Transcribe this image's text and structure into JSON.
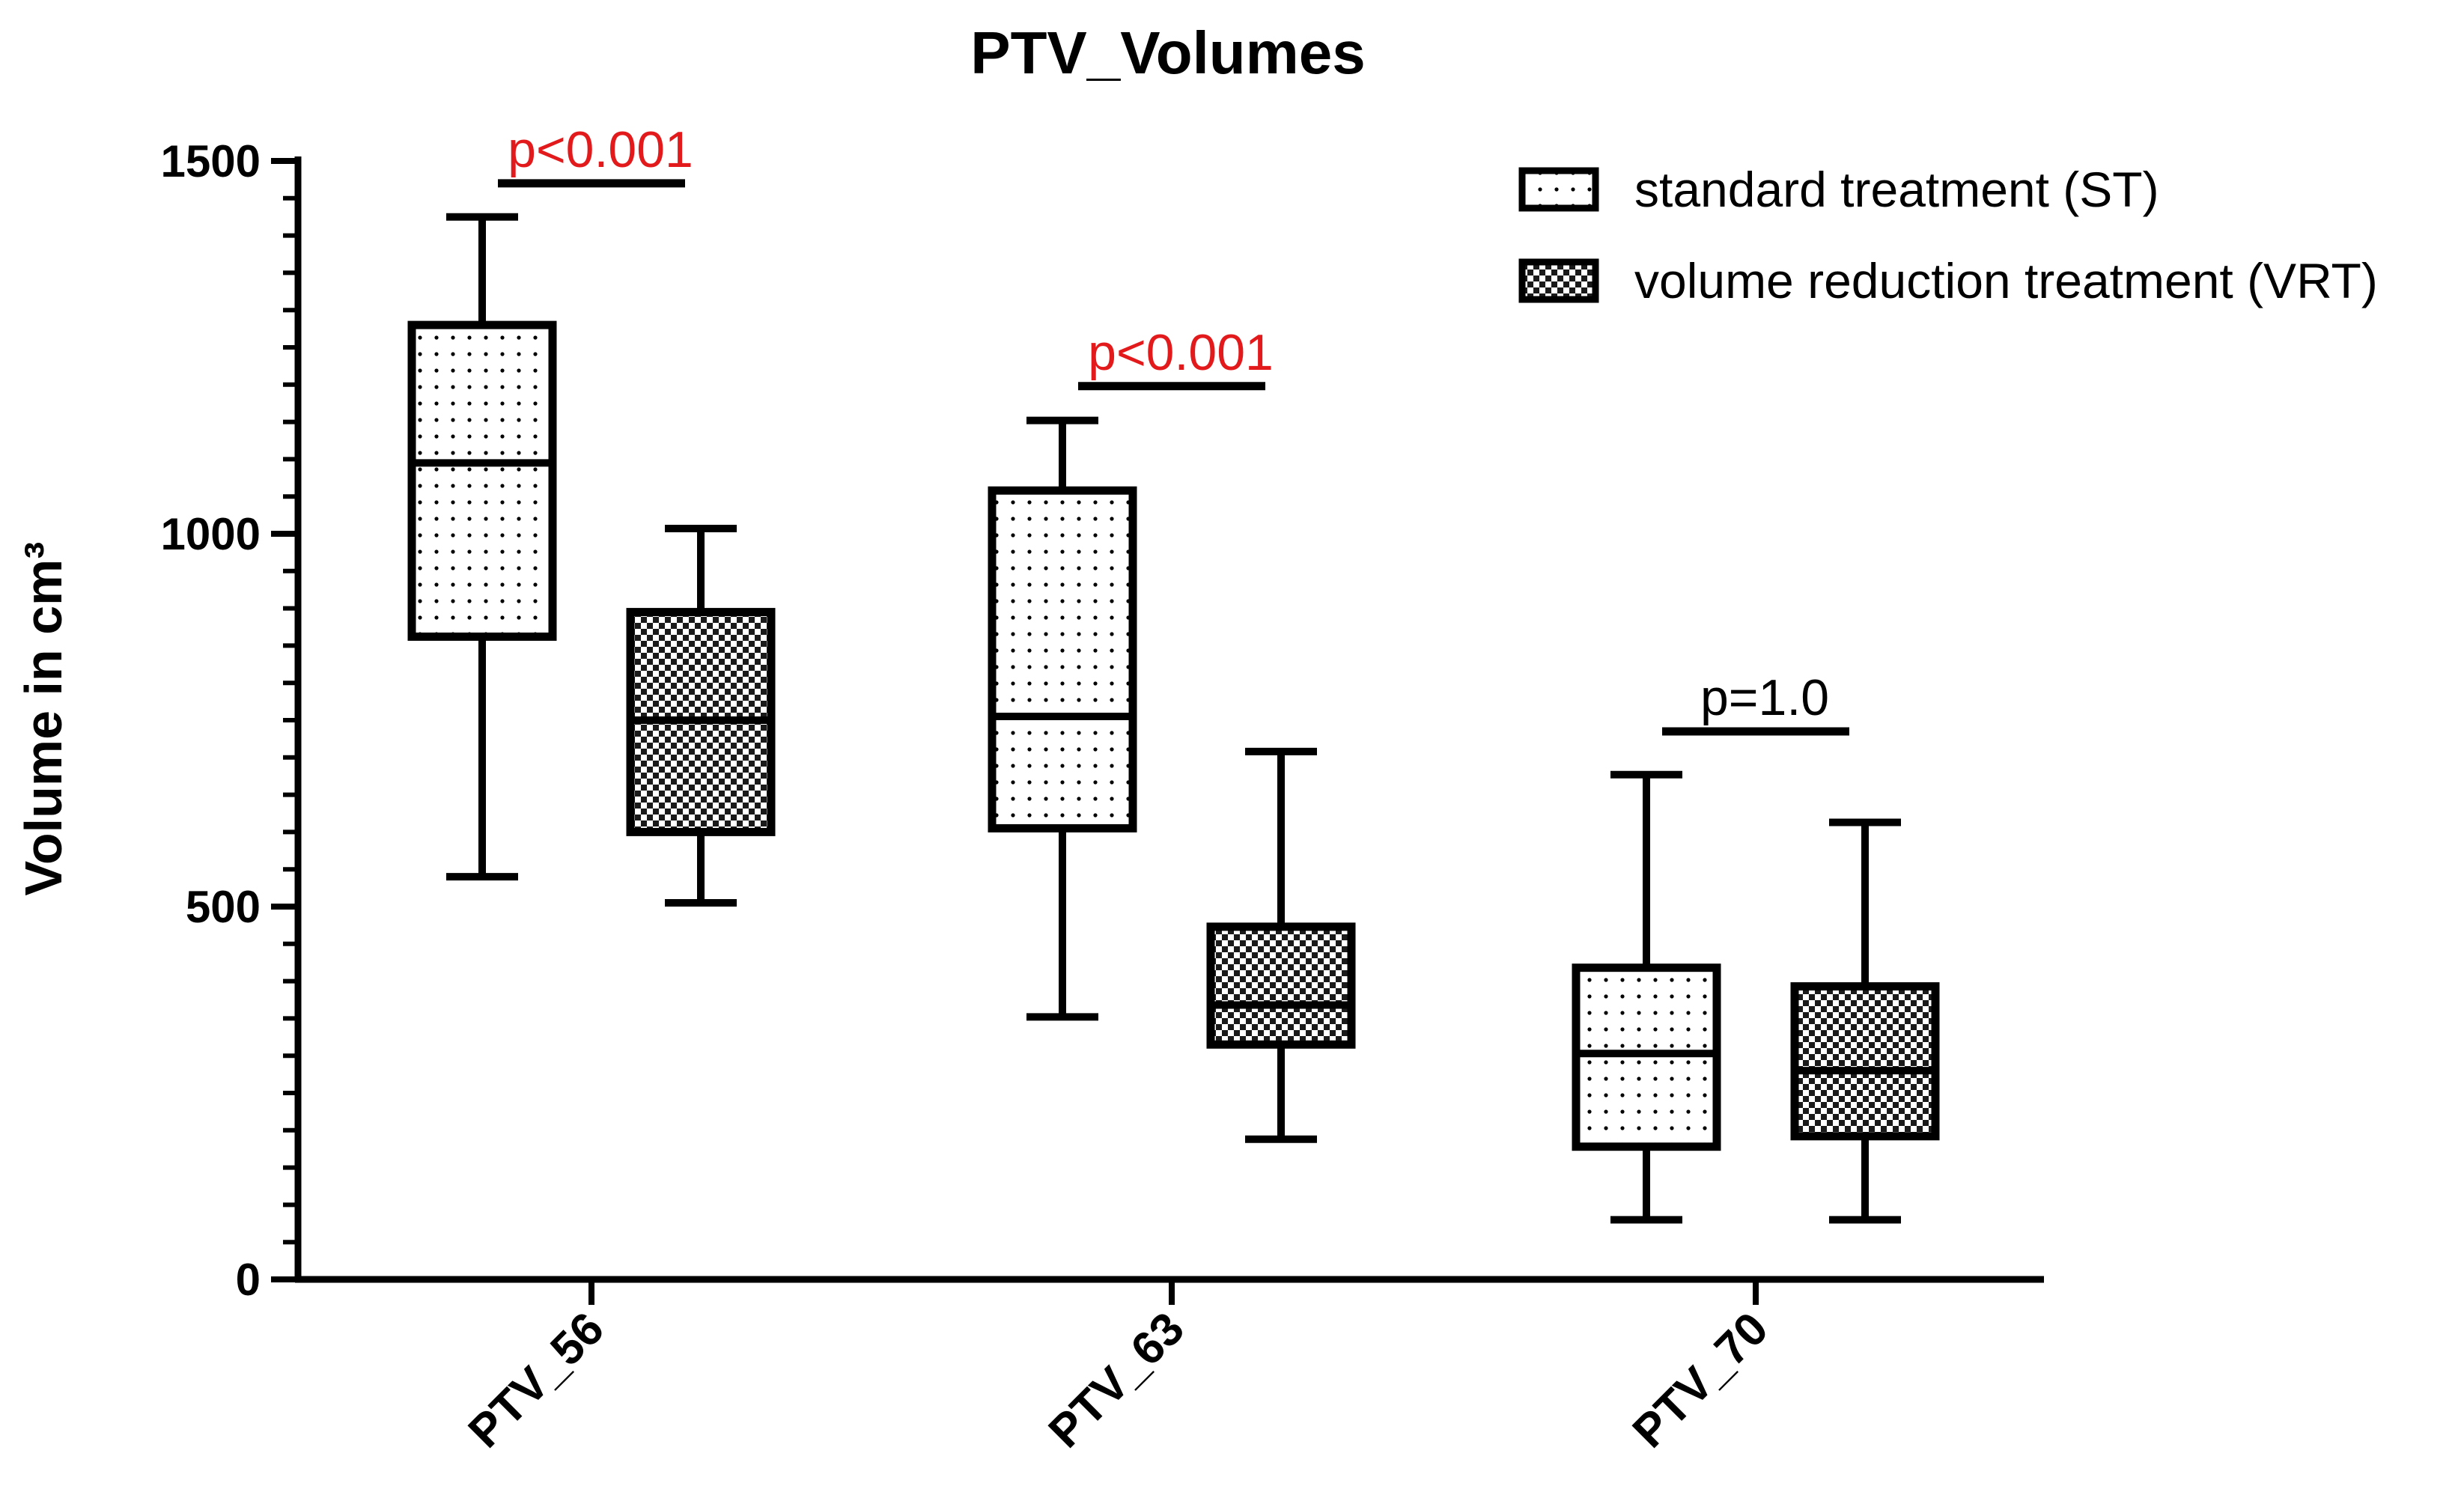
{
  "chart_data": {
    "type": "boxplot",
    "title": "PTV_Volumes",
    "xlabel": "",
    "ylabel": "Volume in cm³",
    "ylim": [
      0,
      1500
    ],
    "yticks": [
      0,
      500,
      1000,
      1500
    ],
    "ytick_labels": [
      "0",
      "500",
      "1000",
      "1500"
    ],
    "categories": [
      "PTV_56",
      "PTV_63",
      "PTV_70"
    ],
    "legend_position": "top-right",
    "series": [
      {
        "name": "standard treatment (ST)",
        "pattern": "dots",
        "boxes": [
          {
            "min": 540,
            "q1": 862,
            "median": 1095,
            "q3": 1280,
            "max": 1425
          },
          {
            "min": 352,
            "q1": 605,
            "median": 755,
            "q3": 1058,
            "max": 1152
          },
          {
            "min": 80,
            "q1": 178,
            "median": 303,
            "q3": 418,
            "max": 677
          }
        ]
      },
      {
        "name": "volume reduction treatment (VRT)",
        "pattern": "checker",
        "boxes": [
          {
            "min": 505,
            "q1": 600,
            "median": 750,
            "q3": 895,
            "max": 1007
          },
          {
            "min": 188,
            "q1": 315,
            "median": 368,
            "q3": 473,
            "max": 708
          },
          {
            "min": 80,
            "q1": 192,
            "median": 280,
            "q3": 393,
            "max": 613
          }
        ]
      }
    ],
    "annotations": [
      {
        "text": "p<0.001",
        "category": "PTV_56",
        "y": 1470,
        "color": "#e31a1c"
      },
      {
        "text": "p<0.001",
        "category": "PTV_63",
        "y": 1198,
        "color": "#e31a1c"
      },
      {
        "text": "p=1.0",
        "category": "PTV_70",
        "y": 735,
        "color": "#000000"
      }
    ]
  }
}
